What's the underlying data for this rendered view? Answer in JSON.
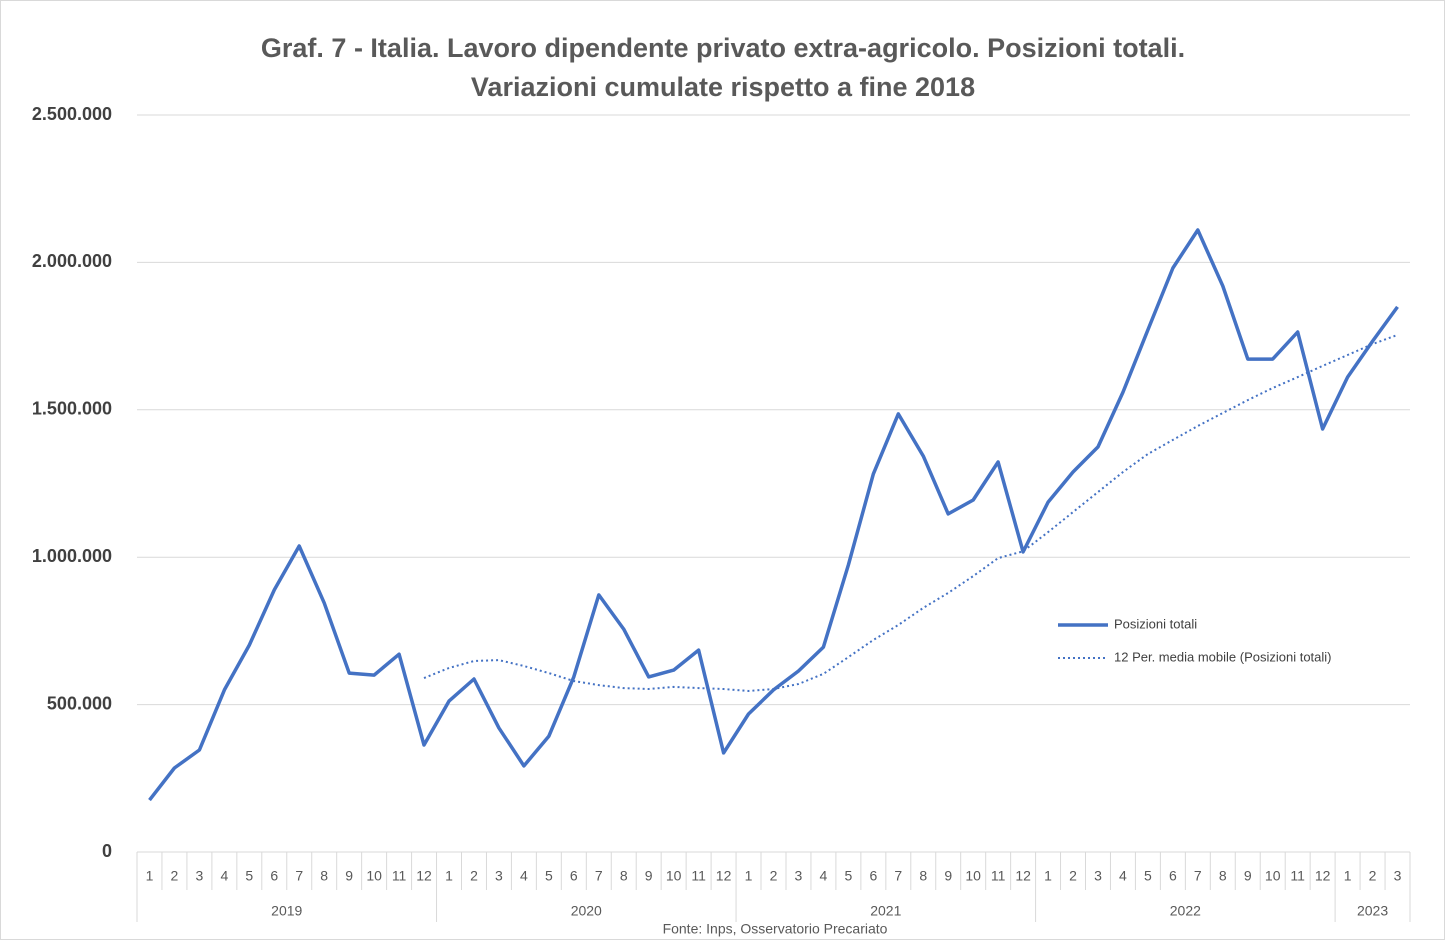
{
  "chart_data": {
    "type": "line",
    "title": [
      "Graf. 7 - Italia. Lavoro dipendente privato extra-agricolo. Posizioni totali.",
      "Variazioni cumulate rispetto a fine 2018"
    ],
    "source": "Fonte: Inps, Osservatorio Precariato",
    "category_groups": [
      {
        "label": "2019",
        "categories": [
          "1",
          "2",
          "3",
          "4",
          "5",
          "6",
          "7",
          "8",
          "9",
          "10",
          "11",
          "12"
        ]
      },
      {
        "label": "2020",
        "categories": [
          "1",
          "2",
          "3",
          "4",
          "5",
          "6",
          "7",
          "8",
          "9",
          "10",
          "11",
          "12"
        ]
      },
      {
        "label": "2021",
        "categories": [
          "1",
          "2",
          "3",
          "4",
          "5",
          "6",
          "7",
          "8",
          "9",
          "10",
          "11",
          "12"
        ]
      },
      {
        "label": "2022",
        "categories": [
          "1",
          "2",
          "3",
          "4",
          "5",
          "6",
          "7",
          "8",
          "9",
          "10",
          "11",
          "12"
        ]
      },
      {
        "label": "2023",
        "categories": [
          "1",
          "2",
          "3"
        ]
      }
    ],
    "series": [
      {
        "name": "Posizioni totali",
        "color": "#4472c4",
        "style": "solid",
        "values": [
          176000,
          285000,
          346000,
          550000,
          702000,
          889000,
          1038000,
          845000,
          607000,
          600000,
          671000,
          363000,
          512000,
          587000,
          421000,
          292000,
          393000,
          594000,
          872000,
          756000,
          594000,
          617000,
          685000,
          336000,
          468000,
          550000,
          614000,
          695000,
          974000,
          1282000,
          1486000,
          1343000,
          1147000,
          1194000,
          1323000,
          1018000,
          1187000,
          1289000,
          1374000,
          1560000,
          1771000,
          1981000,
          2110000,
          1920000,
          1672000,
          1672000,
          1764000,
          1435000,
          1611000,
          1733000,
          1849000
        ]
      },
      {
        "name": "12 Per. media mobile (Posizioni totali)",
        "color": "#4472c4",
        "style": "dotted",
        "values": [
          null,
          null,
          null,
          null,
          null,
          null,
          null,
          null,
          null,
          null,
          null,
          590000,
          624000,
          648000,
          651000,
          631000,
          607000,
          580000,
          566000,
          556000,
          553000,
          560000,
          556000,
          553000,
          546000,
          553000,
          570000,
          604000,
          661000,
          719000,
          770000,
          828000,
          879000,
          936000,
          997000,
          1020000,
          1085000,
          1153000,
          1221000,
          1289000,
          1350000,
          1398000,
          1445000,
          1489000,
          1533000,
          1574000,
          1611000,
          1649000,
          1686000,
          1723000,
          1754000
        ]
      }
    ],
    "ylim": [
      0,
      2500000
    ],
    "yticks": [
      0,
      {
        "value": 500000,
        "label": "500.000"
      },
      {
        "value": 1000000,
        "label": "1.000.000"
      },
      {
        "value": 1500000,
        "label": "1.500.000"
      },
      {
        "value": 2000000,
        "label": "2.000.000"
      },
      {
        "value": 2500000,
        "label": "2.500.000"
      }
    ],
    "grid": true,
    "legend": "right"
  }
}
